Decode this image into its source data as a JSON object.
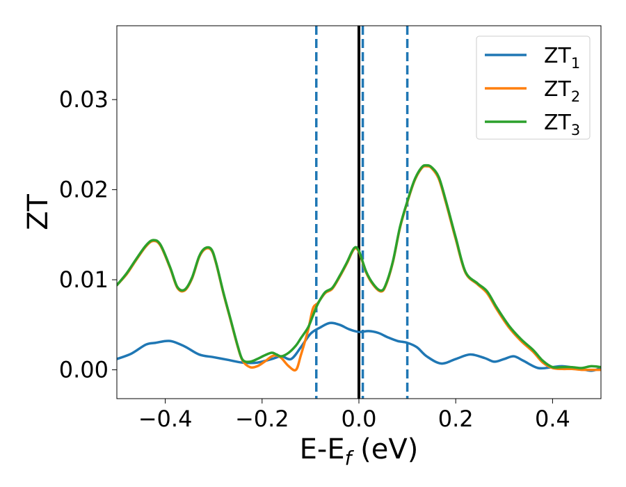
{
  "chart_data": {
    "type": "line",
    "title": "",
    "xlabel": "E-E",
    "xlabel_sub": "f",
    "xlabel_unit": " (eV)",
    "ylabel": "ZT",
    "xlim": [
      -0.5,
      0.5
    ],
    "ylim": [
      -0.0032,
      0.0382
    ],
    "xticks": [
      -0.4,
      -0.2,
      0.0,
      0.2,
      0.4
    ],
    "xtick_labels": [
      "−0.4",
      "−0.2",
      "0.0",
      "0.2",
      "0.4"
    ],
    "yticks": [
      0.0,
      0.01,
      0.02,
      0.03
    ],
    "ytick_labels": [
      "0.00",
      "0.01",
      "0.02",
      "0.03"
    ],
    "grid": false,
    "legend_position": "top-right",
    "vertical_lines": [
      {
        "x": 0.0,
        "style": "solid",
        "color": "#000000"
      },
      {
        "x": -0.088,
        "style": "dashed",
        "color": "#1f77b4"
      },
      {
        "x": 0.008,
        "style": "dashed",
        "color": "#1f77b4"
      },
      {
        "x": 0.1,
        "style": "dashed",
        "color": "#1f77b4"
      }
    ],
    "series": [
      {
        "name": "ZT",
        "name_sub": "1",
        "color": "#1f77b4",
        "x": [
          -0.5,
          -0.47,
          -0.44,
          -0.42,
          -0.39,
          -0.36,
          -0.33,
          -0.3,
          -0.27,
          -0.24,
          -0.21,
          -0.18,
          -0.16,
          -0.14,
          -0.12,
          -0.1,
          -0.08,
          -0.06,
          -0.04,
          -0.02,
          0.0,
          0.02,
          0.04,
          0.06,
          0.08,
          0.1,
          0.12,
          0.14,
          0.17,
          0.2,
          0.23,
          0.26,
          0.28,
          0.3,
          0.32,
          0.34,
          0.37,
          0.4,
          0.42,
          0.45,
          0.48,
          0.5
        ],
        "y": [
          0.0012,
          0.0018,
          0.0028,
          0.003,
          0.0032,
          0.0026,
          0.0017,
          0.0014,
          0.0011,
          0.0008,
          0.0008,
          0.0012,
          0.0015,
          0.0012,
          0.0025,
          0.004,
          0.0047,
          0.0052,
          0.005,
          0.0045,
          0.0042,
          0.0043,
          0.0041,
          0.0036,
          0.0032,
          0.003,
          0.0025,
          0.0015,
          0.0007,
          0.0012,
          0.0017,
          0.0013,
          0.0009,
          0.0012,
          0.0015,
          0.001,
          0.0002,
          0.0003,
          0.0004,
          0.0002,
          -0.0001,
          0.0002
        ]
      },
      {
        "name": "ZT",
        "name_sub": "2",
        "color": "#ff7f0e",
        "x": [
          -0.5,
          -0.48,
          -0.46,
          -0.44,
          -0.425,
          -0.41,
          -0.39,
          -0.375,
          -0.36,
          -0.345,
          -0.33,
          -0.318,
          -0.305,
          -0.295,
          -0.28,
          -0.265,
          -0.25,
          -0.24,
          -0.225,
          -0.21,
          -0.195,
          -0.18,
          -0.17,
          -0.16,
          -0.145,
          -0.13,
          -0.12,
          -0.105,
          -0.095,
          -0.085,
          -0.07,
          -0.055,
          -0.04,
          -0.025,
          -0.01,
          0.0,
          0.015,
          0.03,
          0.045,
          0.055,
          0.07,
          0.085,
          0.1,
          0.115,
          0.13,
          0.14,
          0.15,
          0.165,
          0.18,
          0.2,
          0.22,
          0.245,
          0.265,
          0.285,
          0.31,
          0.335,
          0.36,
          0.38,
          0.4,
          0.42,
          0.44,
          0.46,
          0.48,
          0.5
        ],
        "y": [
          0.0094,
          0.0106,
          0.0122,
          0.0137,
          0.0143,
          0.0138,
          0.0113,
          0.0091,
          0.0088,
          0.0101,
          0.0125,
          0.0134,
          0.0133,
          0.0118,
          0.0085,
          0.0055,
          0.0025,
          0.001,
          0.0003,
          0.0004,
          0.0009,
          0.0015,
          0.0016,
          0.0013,
          0.0004,
          0.0,
          0.0016,
          0.0044,
          0.0068,
          0.0074,
          0.0085,
          0.009,
          0.0103,
          0.0118,
          0.0134,
          0.0131,
          0.0108,
          0.0094,
          0.0087,
          0.0093,
          0.0119,
          0.0158,
          0.0186,
          0.021,
          0.0224,
          0.0226,
          0.0224,
          0.0212,
          0.0185,
          0.0145,
          0.0108,
          0.0095,
          0.0085,
          0.0067,
          0.0047,
          0.0032,
          0.002,
          0.0008,
          0.0002,
          0.0001,
          0.0001,
          0.0,
          0.0,
          0.0
        ]
      },
      {
        "name": "ZT",
        "name_sub": "3",
        "color": "#2ca02c",
        "x": [
          -0.5,
          -0.48,
          -0.46,
          -0.44,
          -0.425,
          -0.41,
          -0.39,
          -0.375,
          -0.36,
          -0.345,
          -0.33,
          -0.318,
          -0.305,
          -0.295,
          -0.28,
          -0.265,
          -0.25,
          -0.24,
          -0.225,
          -0.21,
          -0.195,
          -0.18,
          -0.17,
          -0.16,
          -0.145,
          -0.13,
          -0.12,
          -0.105,
          -0.095,
          -0.085,
          -0.07,
          -0.055,
          -0.04,
          -0.025,
          -0.01,
          0.0,
          0.015,
          0.03,
          0.045,
          0.055,
          0.07,
          0.085,
          0.1,
          0.115,
          0.13,
          0.14,
          0.15,
          0.165,
          0.18,
          0.2,
          0.22,
          0.245,
          0.265,
          0.285,
          0.31,
          0.335,
          0.36,
          0.38,
          0.4,
          0.42,
          0.44,
          0.46,
          0.48,
          0.5
        ],
        "y": [
          0.0094,
          0.0107,
          0.0123,
          0.0138,
          0.0144,
          0.0139,
          0.0114,
          0.0092,
          0.0089,
          0.0102,
          0.0126,
          0.0135,
          0.0134,
          0.0119,
          0.0086,
          0.0056,
          0.0026,
          0.0011,
          0.0009,
          0.0012,
          0.0016,
          0.0019,
          0.0017,
          0.0015,
          0.0019,
          0.0027,
          0.0035,
          0.0047,
          0.006,
          0.0073,
          0.0086,
          0.0091,
          0.0104,
          0.0119,
          0.0135,
          0.0132,
          0.0109,
          0.0095,
          0.0088,
          0.0094,
          0.012,
          0.0159,
          0.0187,
          0.0211,
          0.0225,
          0.0227,
          0.0225,
          0.0214,
          0.0187,
          0.0147,
          0.0109,
          0.0096,
          0.0087,
          0.0069,
          0.0049,
          0.0034,
          0.0022,
          0.001,
          0.0003,
          0.0003,
          0.0003,
          0.0002,
          0.0004,
          0.0003
        ]
      }
    ]
  }
}
